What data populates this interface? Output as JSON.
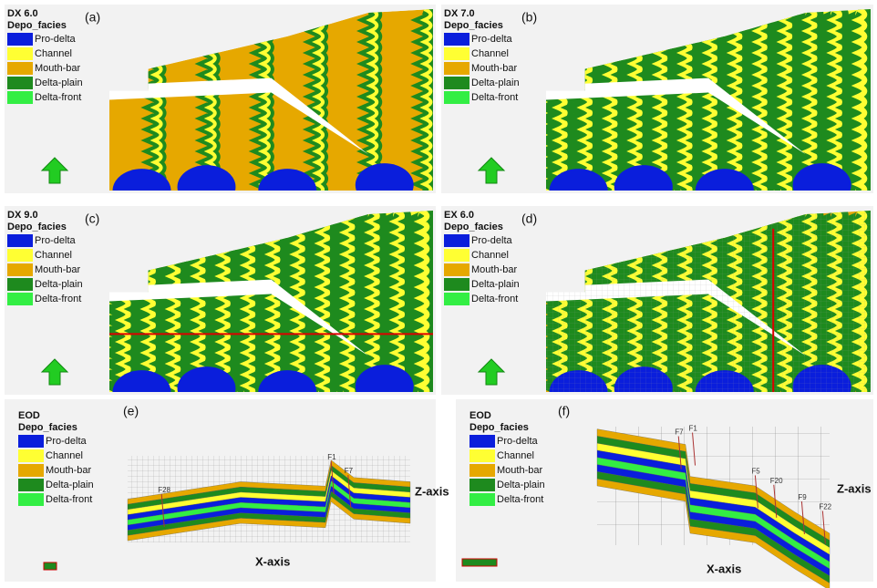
{
  "legend": [
    {
      "label": "Pro-delta",
      "color": "#0a1edc"
    },
    {
      "label": "Channel",
      "color": "#ffff33"
    },
    {
      "label": "Mouth-bar",
      "color": "#e6a800"
    },
    {
      "label": "Delta-plain",
      "color": "#1e8a1e"
    },
    {
      "label": "Delta-front",
      "color": "#33ee44"
    }
  ],
  "panels": [
    {
      "letter": "(a)",
      "title": "DX 6.0",
      "subtitle": "Depo_facies"
    },
    {
      "letter": "(b)",
      "title": "DX 7.0",
      "subtitle": "Depo_facies"
    },
    {
      "letter": "(c)",
      "title": "DX 9.0",
      "subtitle": "Depo_facies"
    },
    {
      "letter": "(d)",
      "title": "EX 6.0",
      "subtitle": "Depo_facies"
    },
    {
      "letter": "(e)",
      "title": "EOD",
      "subtitle": "Depo_facies",
      "z_axis": "Z-axis",
      "x_axis": "X-axis",
      "faults": [
        "F28",
        "F1",
        "F7"
      ]
    },
    {
      "letter": "(f)",
      "title": "EOD",
      "subtitle": "Depo_facies",
      "z_axis": "Z-axis",
      "x_axis": "X-axis",
      "faults": [
        "F7",
        "F1",
        "F5",
        "F20",
        "F9",
        "F22"
      ]
    }
  ]
}
